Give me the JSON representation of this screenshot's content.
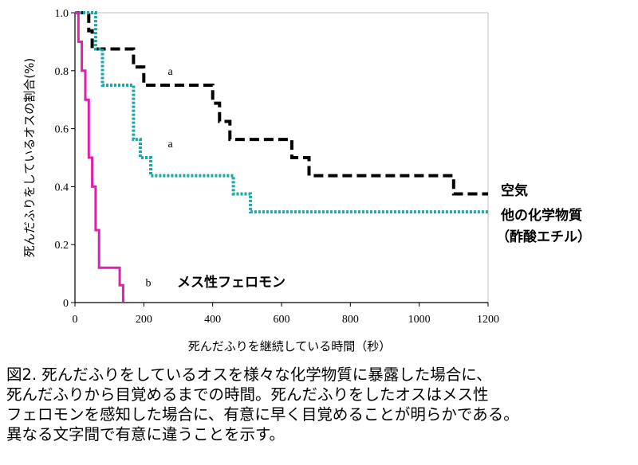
{
  "chart_data": {
    "type": "line",
    "step": true,
    "ylabel": "死んだふりをしているオスの割合(%)",
    "xlabel": "死んだふりを継続している時間（秒）",
    "xlim": [
      0,
      1200
    ],
    "ylim": [
      0,
      1.0
    ],
    "x_ticks": [
      0,
      200,
      400,
      600,
      800,
      1000,
      1200
    ],
    "y_ticks": [
      0,
      0.2,
      0.4,
      0.6,
      0.8,
      1.0
    ],
    "y_tick_labels": [
      "0",
      "0.2",
      "0.4",
      "0.6",
      "0.8",
      "1.0"
    ],
    "grid": false,
    "series": [
      {
        "name": "空気",
        "color": "#000000",
        "style": "dashed",
        "group_letter": "a",
        "x": [
          0,
          40,
          50,
          100,
          170,
          200,
          290,
          300,
          320,
          400,
          420,
          450,
          460,
          560,
          570,
          590,
          630,
          650,
          680,
          700,
          1000,
          1100,
          1130,
          1200
        ],
        "y": [
          1.0,
          0.938,
          0.875,
          0.875,
          0.813,
          0.75,
          0.75,
          0.75,
          0.75,
          0.688,
          0.625,
          0.563,
          0.563,
          0.563,
          0.563,
          0.563,
          0.5,
          0.5,
          0.438,
          0.438,
          0.438,
          0.375,
          0.375,
          0.375
        ]
      },
      {
        "name": "他の化学物質（酢酸エチル）",
        "name_lines": [
          "他の化学物質",
          "（酢酸エチル）"
        ],
        "color": "#1fa6a6",
        "style": "dotted",
        "group_letter": "a",
        "x": [
          0,
          60,
          80,
          170,
          190,
          220,
          460,
          510,
          1200
        ],
        "y": [
          1.0,
          0.875,
          0.75,
          0.563,
          0.5,
          0.438,
          0.375,
          0.313,
          0.313
        ]
      },
      {
        "name": "メス性フェロモン",
        "color": "#e020a8",
        "style": "solid",
        "group_letter": "b",
        "x": [
          0,
          10,
          20,
          30,
          40,
          50,
          60,
          70,
          120,
          130,
          140
        ],
        "y": [
          1.0,
          0.9,
          0.8,
          0.7,
          0.5,
          0.4,
          0.25,
          0.12,
          0.12,
          0.06,
          0.0
        ]
      }
    ]
  },
  "caption": {
    "lines": [
      "図2.  死んだふりをしているオスを様々な化学物質に暴露した場合に、",
      "死んだふりから目覚めるまでの時間。死んだふりをしたオスはメス性",
      "フェロモンを感知した場合に、有意に早く目覚めることが明らかである。",
      "異なる文字間で有意に違うことを示す。"
    ]
  }
}
